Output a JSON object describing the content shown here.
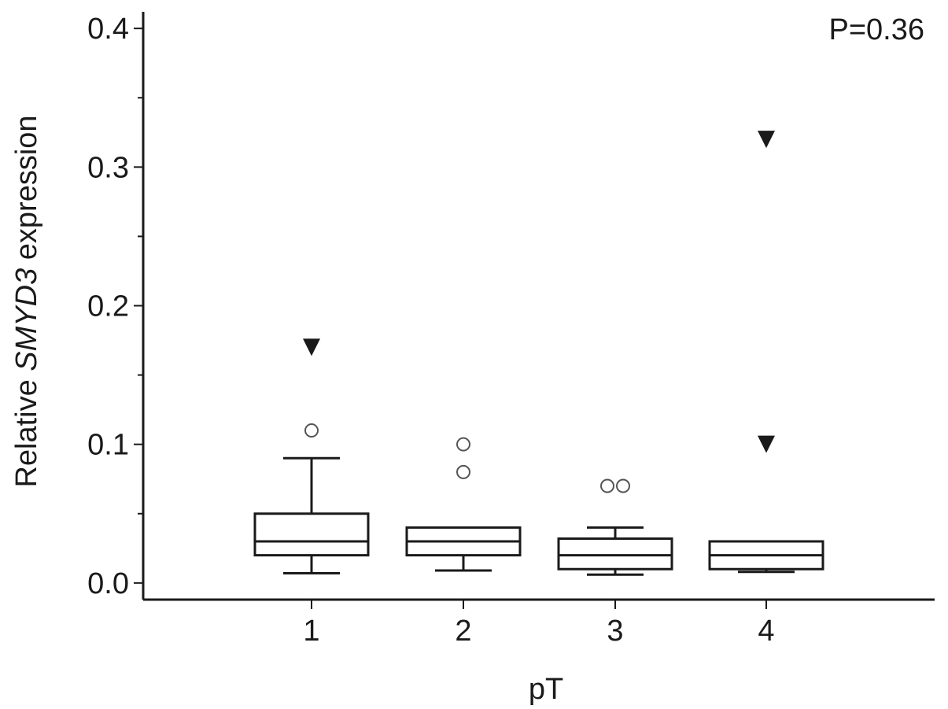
{
  "chart_data": {
    "type": "box",
    "xlabel": "pT",
    "ylabel_parts": [
      "Relative ",
      "SMYD3",
      " expression"
    ],
    "annotation": "P=0.36",
    "ylim": [
      -0.012,
      0.412
    ],
    "yticks": [
      0.0,
      0.1,
      0.2,
      0.3,
      0.4
    ],
    "ytick_labels": [
      "0.0",
      "0.1",
      "0.2",
      "0.3",
      "0.4"
    ],
    "minor_ticks": [
      0.05,
      0.15,
      0.25,
      0.35
    ],
    "categories": [
      "1",
      "2",
      "3",
      "4"
    ],
    "boxes": [
      {
        "category": "1",
        "whisker_low": 0.007,
        "q1": 0.02,
        "median": 0.03,
        "q3": 0.05,
        "whisker_high": 0.09,
        "outliers": [
          0.11
        ],
        "extremes": [
          0.17
        ]
      },
      {
        "category": "2",
        "whisker_low": 0.009,
        "q1": 0.02,
        "median": 0.03,
        "q3": 0.04,
        "whisker_high": 0.04,
        "outliers": [
          0.08,
          0.1
        ],
        "extremes": []
      },
      {
        "category": "3",
        "whisker_low": 0.006,
        "q1": 0.01,
        "median": 0.02,
        "q3": 0.032,
        "whisker_high": 0.04,
        "outliers": [
          0.07,
          0.07
        ],
        "extremes": []
      },
      {
        "category": "4",
        "whisker_low": 0.008,
        "q1": 0.01,
        "median": 0.02,
        "q3": 0.03,
        "whisker_high": 0.03,
        "outliers": [],
        "extremes": [
          0.1,
          0.32
        ]
      }
    ],
    "outlier_marker": "open-circle",
    "extreme_marker": "filled-down-triangle"
  }
}
